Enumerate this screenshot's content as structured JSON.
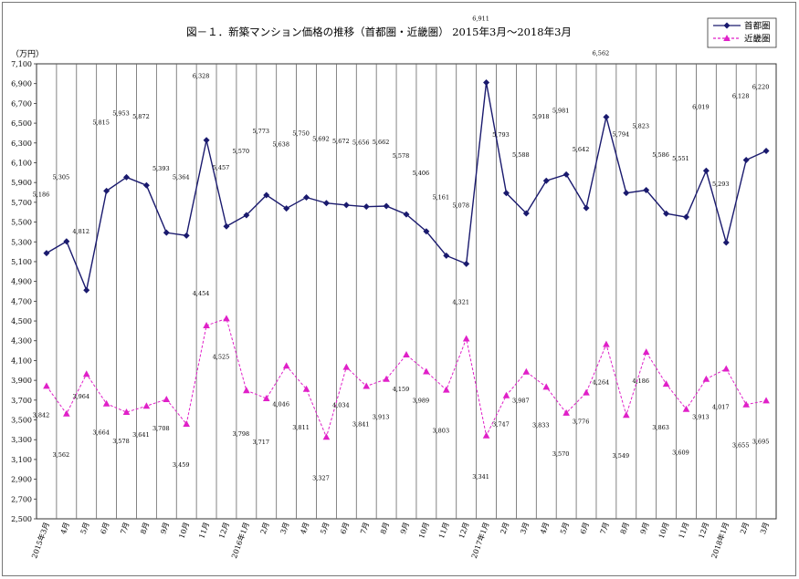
{
  "chart_data": {
    "type": "line",
    "title": "図－１．新築マンション価格の推移（首都圏・近畿圏） 2015年3月～2018年3月",
    "ylabel": "（万円）",
    "ylim": [
      2500,
      7100
    ],
    "yticks": [
      2500,
      2700,
      2900,
      3100,
      3300,
      3500,
      3700,
      3900,
      4100,
      4300,
      4500,
      4700,
      4900,
      5100,
      5300,
      5500,
      5700,
      5900,
      6100,
      6300,
      6500,
      6700,
      6900,
      7100
    ],
    "ytick_labels": [
      "2,500",
      "2,700",
      "2,900",
      "3,100",
      "3,300",
      "3,500",
      "3,700",
      "3,900",
      "4,100",
      "4,300",
      "4,500",
      "4,700",
      "4,900",
      "5,100",
      "5,300",
      "5,500",
      "5,700",
      "5,900",
      "6,100",
      "6,300",
      "6,500",
      "6,700",
      "6,900",
      "7,100"
    ],
    "categories": [
      "2015年3月",
      "4月",
      "5月",
      "6月",
      "7月",
      "8月",
      "9月",
      "10月",
      "11月",
      "12月",
      "2016年1月",
      "2月",
      "3月",
      "4月",
      "5月",
      "6月",
      "7月",
      "8月",
      "9月",
      "10月",
      "11月",
      "12月",
      "2017年1月",
      "2月",
      "3月",
      "4月",
      "5月",
      "6月",
      "7月",
      "8月",
      "9月",
      "10月",
      "11月",
      "12月",
      "2018年1月",
      "2月",
      "3月"
    ],
    "series": [
      {
        "name": "首都圏",
        "color": "#1a1a6e",
        "line_style": "solid",
        "marker": "diamond",
        "values": [
          5186,
          5305,
          4812,
          5815,
          5953,
          5872,
          5393,
          5364,
          6328,
          5457,
          5570,
          5773,
          5638,
          5750,
          5692,
          5672,
          5656,
          5662,
          5578,
          5406,
          5161,
          5078,
          6911,
          5793,
          5588,
          5918,
          5981,
          5642,
          6562,
          5794,
          5823,
          5586,
          5551,
          6019,
          5293,
          6128,
          6220
        ],
        "labels": [
          "5,186",
          "5,305",
          "4,812",
          "5,815",
          "5,953",
          "5,872",
          "5,393",
          "5,364",
          "6,328",
          "5,457",
          "5,570",
          "5,773",
          "5,638",
          "5,750",
          "5,692",
          "5,672",
          "5,656",
          "5,662",
          "5,578",
          "5,406",
          "5,161",
          "5,078",
          "6,911",
          "5,793",
          "5,588",
          "5,918",
          "5,981",
          "5,642",
          "6,562",
          "5,794",
          "5,823",
          "5,586",
          "5,551",
          "6,019",
          "5,293",
          "6,128",
          "6,220"
        ]
      },
      {
        "name": "近畿圏",
        "color": "#e020c8",
        "line_style": "dashed",
        "marker": "triangle",
        "values": [
          3842,
          3562,
          3964,
          3664,
          3578,
          3641,
          3708,
          3459,
          4454,
          4525,
          3798,
          3717,
          4046,
          3811,
          3327,
          4034,
          3841,
          3913,
          4159,
          3989,
          3803,
          4321,
          3341,
          3747,
          3987,
          3833,
          3570,
          3776,
          4264,
          3549,
          4186,
          3863,
          3609,
          3913,
          4017,
          3655,
          3695
        ],
        "labels": [
          "3,842",
          "3,562",
          "3,964",
          "3,664",
          "3,578",
          "3,641",
          "3,708",
          "3,459",
          "4,454",
          "4,525",
          "3,798",
          "3,717",
          "4,046",
          "3,811",
          "3,327",
          "4,034",
          "3,841",
          "3,913",
          "4,159",
          "3,989",
          "3,803",
          "4,321",
          "3,341",
          "3,747",
          "3,987",
          "3,833",
          "3,570",
          "3,776",
          "4,264",
          "3,549",
          "4,186",
          "3,863",
          "3,609",
          "3,913",
          "4,017",
          "3,655",
          "3,695"
        ]
      }
    ],
    "legend_position": "top-right",
    "grid": "vertical"
  }
}
